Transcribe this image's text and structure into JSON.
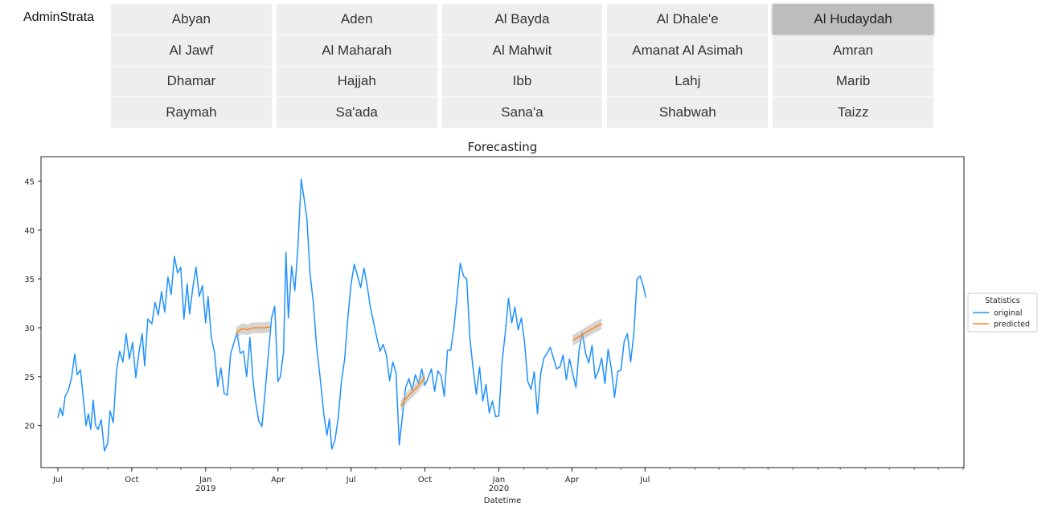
{
  "strata": {
    "label": "AdminStrata",
    "selected": "Al Hudaydah",
    "options": [
      "Abyan",
      "Aden",
      "Al Bayda",
      "Al Dhale'e",
      "Al Hudaydah",
      "Al Jawf",
      "Al Maharah",
      "Al Mahwit",
      "Amanat Al Asimah",
      "Amran",
      "Dhamar",
      "Hajjah",
      "Ibb",
      "Lahj",
      "Marib",
      "Raymah",
      "Sa'ada",
      "Sana'a",
      "Shabwah",
      "Taizz"
    ]
  },
  "chart_data": {
    "type": "line",
    "title": "Forecasting",
    "xlabel": "Datetime",
    "ylabel": "",
    "xlim": [
      "2018-06-10",
      "2021-08-02"
    ],
    "ylim": [
      15.7,
      47.5
    ],
    "yticks": [
      20,
      25,
      30,
      35,
      40,
      45
    ],
    "xticks": [
      {
        "date": "2018-07-01",
        "label": "Jul",
        "sublabel": ""
      },
      {
        "date": "2018-10-01",
        "label": "Oct",
        "sublabel": ""
      },
      {
        "date": "2019-01-01",
        "label": "Jan",
        "sublabel": "2019"
      },
      {
        "date": "2019-04-01",
        "label": "Apr",
        "sublabel": ""
      },
      {
        "date": "2019-07-01",
        "label": "Jul",
        "sublabel": ""
      },
      {
        "date": "2019-10-01",
        "label": "Oct",
        "sublabel": ""
      },
      {
        "date": "2020-01-01",
        "label": "Jan",
        "sublabel": "2020"
      },
      {
        "date": "2020-04-01",
        "label": "Apr",
        "sublabel": ""
      },
      {
        "date": "2020-07-01",
        "label": "Jul",
        "sublabel": ""
      }
    ],
    "grid": false,
    "legend": {
      "title": "Statistics",
      "placement": "outside-right"
    },
    "series": [
      {
        "name": "original",
        "color": "#1e90ff",
        "points": [
          [
            "2018-07-01",
            20.8
          ],
          [
            "2018-07-04",
            21.8
          ],
          [
            "2018-07-07",
            21.0
          ],
          [
            "2018-07-10",
            23.0
          ],
          [
            "2018-07-14",
            23.6
          ],
          [
            "2018-07-18",
            24.9
          ],
          [
            "2018-07-22",
            27.3
          ],
          [
            "2018-07-25",
            25.2
          ],
          [
            "2018-07-29",
            25.7
          ],
          [
            "2018-08-02",
            22.5
          ],
          [
            "2018-08-05",
            20.0
          ],
          [
            "2018-08-08",
            21.2
          ],
          [
            "2018-08-11",
            19.6
          ],
          [
            "2018-08-14",
            22.6
          ],
          [
            "2018-08-17",
            20.0
          ],
          [
            "2018-08-20",
            19.6
          ],
          [
            "2018-08-24",
            20.6
          ],
          [
            "2018-08-28",
            17.4
          ],
          [
            "2018-09-01",
            18.2
          ],
          [
            "2018-09-04",
            21.5
          ],
          [
            "2018-09-08",
            20.3
          ],
          [
            "2018-09-12",
            25.6
          ],
          [
            "2018-09-16",
            27.6
          ],
          [
            "2018-09-20",
            26.5
          ],
          [
            "2018-09-24",
            29.4
          ],
          [
            "2018-09-28",
            26.8
          ],
          [
            "2018-10-02",
            28.5
          ],
          [
            "2018-10-06",
            24.9
          ],
          [
            "2018-10-10",
            27.5
          ],
          [
            "2018-10-14",
            29.4
          ],
          [
            "2018-10-17",
            26.1
          ],
          [
            "2018-10-21",
            30.9
          ],
          [
            "2018-10-26",
            30.4
          ],
          [
            "2018-10-30",
            32.6
          ],
          [
            "2018-11-03",
            31.3
          ],
          [
            "2018-11-07",
            33.7
          ],
          [
            "2018-11-11",
            31.6
          ],
          [
            "2018-11-15",
            35.2
          ],
          [
            "2018-11-19",
            33.4
          ],
          [
            "2018-11-23",
            37.3
          ],
          [
            "2018-11-27",
            35.6
          ],
          [
            "2018-12-01",
            36.2
          ],
          [
            "2018-12-05",
            30.9
          ],
          [
            "2018-12-09",
            34.5
          ],
          [
            "2018-12-12",
            31.4
          ],
          [
            "2018-12-16",
            34.1
          ],
          [
            "2018-12-20",
            36.2
          ],
          [
            "2018-12-24",
            33.2
          ],
          [
            "2018-12-28",
            34.3
          ],
          [
            "2019-01-01",
            30.5
          ],
          [
            "2019-01-04",
            33.2
          ],
          [
            "2019-01-08",
            29.0
          ],
          [
            "2019-01-12",
            27.5
          ],
          [
            "2019-01-16",
            24.0
          ],
          [
            "2019-01-20",
            25.9
          ],
          [
            "2019-01-24",
            23.3
          ],
          [
            "2019-01-28",
            23.1
          ],
          [
            "2019-02-01",
            27.3
          ],
          [
            "2019-02-05",
            28.4
          ],
          [
            "2019-02-09",
            29.5
          ],
          [
            "2019-02-13",
            27.4
          ],
          [
            "2019-02-17",
            27.6
          ],
          [
            "2019-02-21",
            25.0
          ],
          [
            "2019-02-25",
            29.0
          ],
          [
            "2019-03-01",
            24.5
          ],
          [
            "2019-03-04",
            22.5
          ],
          [
            "2019-03-08",
            20.5
          ],
          [
            "2019-03-12",
            19.9
          ],
          [
            "2019-03-16",
            23.5
          ],
          [
            "2019-03-20",
            27.3
          ],
          [
            "2019-03-24",
            31.0
          ],
          [
            "2019-03-28",
            32.2
          ],
          [
            "2019-04-01",
            24.5
          ],
          [
            "2019-04-04",
            25.0
          ],
          [
            "2019-04-08",
            27.5
          ],
          [
            "2019-04-11",
            37.7
          ],
          [
            "2019-04-14",
            31.0
          ],
          [
            "2019-04-18",
            36.3
          ],
          [
            "2019-04-22",
            33.8
          ],
          [
            "2019-04-26",
            38.5
          ],
          [
            "2019-04-30",
            45.2
          ],
          [
            "2019-05-03",
            43.5
          ],
          [
            "2019-05-07",
            41.2
          ],
          [
            "2019-05-11",
            35.5
          ],
          [
            "2019-05-15",
            32.6
          ],
          [
            "2019-05-19",
            28.2
          ],
          [
            "2019-05-24",
            24.5
          ],
          [
            "2019-05-28",
            21.2
          ],
          [
            "2019-06-01",
            19.0
          ],
          [
            "2019-06-04",
            20.7
          ],
          [
            "2019-06-07",
            17.6
          ],
          [
            "2019-06-11",
            18.5
          ],
          [
            "2019-06-15",
            20.8
          ],
          [
            "2019-06-19",
            24.5
          ],
          [
            "2019-06-23",
            26.8
          ],
          [
            "2019-06-27",
            31.0
          ],
          [
            "2019-07-01",
            34.5
          ],
          [
            "2019-07-05",
            36.5
          ],
          [
            "2019-07-09",
            35.3
          ],
          [
            "2019-07-13",
            34.1
          ],
          [
            "2019-07-17",
            36.1
          ],
          [
            "2019-07-21",
            34.4
          ],
          [
            "2019-07-25",
            32.1
          ],
          [
            "2019-07-29",
            30.6
          ],
          [
            "2019-08-02",
            29.0
          ],
          [
            "2019-08-06",
            27.6
          ],
          [
            "2019-08-10",
            28.3
          ],
          [
            "2019-08-14",
            27.2
          ],
          [
            "2019-08-18",
            24.6
          ],
          [
            "2019-08-22",
            26.5
          ],
          [
            "2019-08-26",
            25.4
          ],
          [
            "2019-08-30",
            18.0
          ],
          [
            "2019-09-03",
            21.0
          ],
          [
            "2019-09-07",
            23.9
          ],
          [
            "2019-09-11",
            24.8
          ],
          [
            "2019-09-15",
            23.6
          ],
          [
            "2019-09-19",
            25.2
          ],
          [
            "2019-09-23",
            24.3
          ],
          [
            "2019-09-27",
            25.8
          ],
          [
            "2019-10-01",
            24.1
          ],
          [
            "2019-10-05",
            24.9
          ],
          [
            "2019-10-09",
            25.8
          ],
          [
            "2019-10-13",
            23.5
          ],
          [
            "2019-10-17",
            25.6
          ],
          [
            "2019-10-21",
            25.1
          ],
          [
            "2019-10-25",
            23.0
          ],
          [
            "2019-10-29",
            27.7
          ],
          [
            "2019-11-02",
            27.7
          ],
          [
            "2019-11-06",
            30.0
          ],
          [
            "2019-11-10",
            33.2
          ],
          [
            "2019-11-14",
            36.6
          ],
          [
            "2019-11-18",
            35.3
          ],
          [
            "2019-11-22",
            35.0
          ],
          [
            "2019-11-26",
            28.9
          ],
          [
            "2019-11-30",
            25.8
          ],
          [
            "2019-12-04",
            23.2
          ],
          [
            "2019-12-08",
            26.0
          ],
          [
            "2019-12-12",
            22.5
          ],
          [
            "2019-12-16",
            24.2
          ],
          [
            "2019-12-20",
            21.3
          ],
          [
            "2019-12-24",
            22.5
          ],
          [
            "2019-12-28",
            20.9
          ],
          [
            "2020-01-01",
            21.0
          ],
          [
            "2020-01-05",
            26.5
          ],
          [
            "2020-01-09",
            29.5
          ],
          [
            "2020-01-13",
            33.0
          ],
          [
            "2020-01-17",
            30.5
          ],
          [
            "2020-01-21",
            32.1
          ],
          [
            "2020-01-25",
            29.8
          ],
          [
            "2020-01-29",
            31.0
          ],
          [
            "2020-02-02",
            28.5
          ],
          [
            "2020-02-06",
            24.5
          ],
          [
            "2020-02-10",
            23.7
          ],
          [
            "2020-02-14",
            25.5
          ],
          [
            "2020-02-18",
            21.2
          ],
          [
            "2020-02-22",
            25.3
          ],
          [
            "2020-02-26",
            26.9
          ],
          [
            "2020-03-01",
            27.4
          ],
          [
            "2020-03-05",
            28.0
          ],
          [
            "2020-03-09",
            26.9
          ],
          [
            "2020-03-13",
            25.8
          ],
          [
            "2020-03-17",
            26.0
          ],
          [
            "2020-03-21",
            27.2
          ],
          [
            "2020-03-25",
            24.7
          ],
          [
            "2020-03-29",
            26.8
          ],
          [
            "2020-04-02",
            25.3
          ],
          [
            "2020-04-06",
            23.9
          ],
          [
            "2020-04-10",
            27.8
          ],
          [
            "2020-04-14",
            29.5
          ],
          [
            "2020-04-18",
            27.4
          ],
          [
            "2020-04-22",
            26.4
          ],
          [
            "2020-04-26",
            28.2
          ],
          [
            "2020-04-30",
            24.8
          ],
          [
            "2020-05-04",
            25.6
          ],
          [
            "2020-05-08",
            26.9
          ],
          [
            "2020-05-12",
            24.3
          ],
          [
            "2020-05-16",
            27.8
          ],
          [
            "2020-05-20",
            25.8
          ],
          [
            "2020-05-24",
            22.9
          ],
          [
            "2020-05-28",
            25.5
          ],
          [
            "2020-06-01",
            25.7
          ],
          [
            "2020-06-05",
            28.6
          ],
          [
            "2020-06-09",
            29.4
          ],
          [
            "2020-06-13",
            26.5
          ],
          [
            "2020-06-17",
            29.4
          ],
          [
            "2020-06-21",
            35.0
          ],
          [
            "2020-06-25",
            35.3
          ],
          [
            "2020-06-29",
            34.2
          ],
          [
            "2020-07-02",
            33.1
          ]
        ]
      },
      {
        "name": "predicted",
        "color": "#ff8c1a",
        "band_color": "#b0b0b0",
        "segments": [
          [
            [
              "2019-02-08",
              29.5
            ],
            [
              "2019-02-15",
              29.9
            ],
            [
              "2019-02-22",
              29.8
            ],
            [
              "2019-03-01",
              30.0
            ],
            [
              "2019-03-08",
              30.0
            ],
            [
              "2019-03-15",
              30.0
            ],
            [
              "2019-03-22",
              30.1
            ]
          ],
          [
            [
              "2019-09-01",
              22.0
            ],
            [
              "2019-09-06",
              22.6
            ],
            [
              "2019-09-11",
              23.1
            ],
            [
              "2019-09-16",
              23.5
            ],
            [
              "2019-09-21",
              23.9
            ],
            [
              "2019-09-26",
              24.4
            ],
            [
              "2019-10-01",
              24.9
            ]
          ],
          [
            [
              "2020-04-02",
              28.7
            ],
            [
              "2020-04-08",
              29.0
            ],
            [
              "2020-04-14",
              29.3
            ],
            [
              "2020-04-20",
              29.6
            ],
            [
              "2020-04-26",
              29.9
            ],
            [
              "2020-05-03",
              30.2
            ],
            [
              "2020-05-08",
              30.4
            ]
          ]
        ]
      }
    ]
  }
}
